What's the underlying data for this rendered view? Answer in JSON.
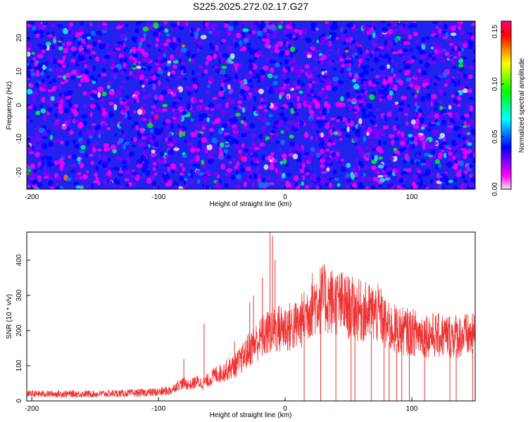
{
  "title": "S225.2025.272.02.17.G27",
  "chart_data": [
    {
      "type": "heatmap",
      "xlabel": "Height of straight line (km)",
      "ylabel": "Frequency (Hz)",
      "xlim": [
        -204,
        150
      ],
      "ylim": [
        -25,
        25
      ],
      "xticks": [
        -200,
        -100,
        0,
        100
      ],
      "yticks": [
        -20,
        -10,
        0,
        10,
        20
      ],
      "colorbar": {
        "label": "Normalized spectral amplitude",
        "range": [
          0,
          0.16
        ],
        "ticks": [
          0.0,
          0.05,
          0.1,
          0.15
        ],
        "tick_labels": [
          "0.00",
          "0.05",
          "0.10",
          "0.15"
        ],
        "colormap": [
          "#f0e6f0",
          "#ff00ff",
          "#8000ff",
          "#0000ff",
          "#0080ff",
          "#00ffff",
          "#00ff80",
          "#00ff00",
          "#80ff00",
          "#ffff00",
          "#ff8000",
          "#ff0000",
          "#ff0080"
        ]
      },
      "description_values": {
        "background_level": 0.03,
        "peak_level": 0.15
      }
    },
    {
      "type": "line",
      "xlabel": "Height of straight line (km)",
      "ylabel": "SNR (10 * v/v)",
      "xlim": [
        -204,
        150
      ],
      "ylim": [
        0,
        480
      ],
      "xticks": [
        -200,
        -100,
        0,
        100
      ],
      "yticks": [
        0,
        100,
        200,
        300,
        400
      ],
      "color": "#ee3333",
      "series": [
        {
          "name": "SNR",
          "x": [
            -204,
            -180,
            -150,
            -120,
            -100,
            -90,
            -85,
            -80,
            -75,
            -70,
            -65,
            -60,
            -55,
            -50,
            -45,
            -40,
            -35,
            -30,
            -25,
            -20,
            -15,
            -10,
            -5,
            0,
            5,
            10,
            15,
            20,
            25,
            30,
            35,
            40,
            45,
            50,
            55,
            60,
            65,
            70,
            75,
            80,
            90,
            100,
            110,
            120,
            130,
            140,
            150
          ],
          "values": [
            20,
            20,
            20,
            22,
            25,
            30,
            45,
            50,
            45,
            55,
            50,
            60,
            75,
            80,
            90,
            100,
            115,
            140,
            160,
            175,
            190,
            200,
            205,
            210,
            210,
            215,
            235,
            270,
            285,
            290,
            285,
            280,
            275,
            265,
            260,
            255,
            250,
            250,
            245,
            210,
            200,
            195,
            190,
            185,
            185,
            185,
            185
          ]
        }
      ]
    }
  ]
}
